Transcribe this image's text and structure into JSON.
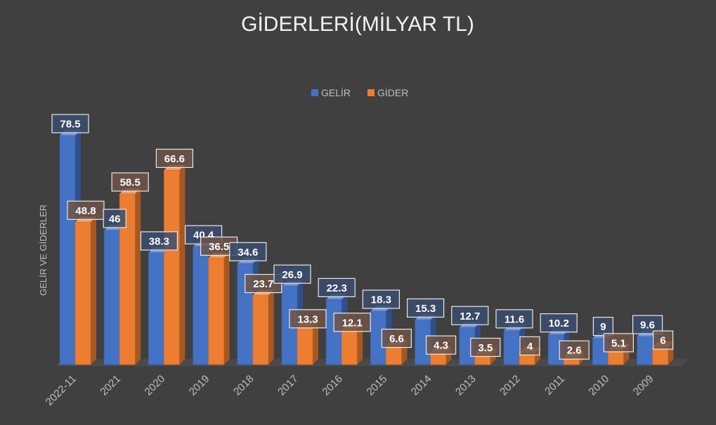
{
  "chart_data": {
    "type": "bar",
    "title": "GİDERLERİ(MİLYAR TL)",
    "xlabel": "",
    "ylabel": "GELİR VE GİDERLER",
    "categories": [
      "2022-11",
      "2021",
      "2020",
      "2019",
      "2018",
      "2017",
      "2016",
      "2015",
      "2014",
      "2013",
      "2012",
      "2011",
      "2010",
      "2009"
    ],
    "series": [
      {
        "name": "GELİR",
        "color": "#4472C4",
        "values": [
          78.5,
          46,
          38.3,
          40.4,
          34.6,
          26.9,
          22.3,
          18.3,
          15.3,
          12.7,
          11.6,
          10.2,
          9,
          9.6
        ]
      },
      {
        "name": "GİDER",
        "color": "#ED7D31",
        "values": [
          48.8,
          58.5,
          66.6,
          36.5,
          23.7,
          13.3,
          12.1,
          6.6,
          4.3,
          3.5,
          4,
          2.6,
          5.1,
          6
        ]
      }
    ],
    "ylim": [
      0,
      80
    ],
    "grid": false,
    "legend": "top-center",
    "data_labels": true,
    "style": "3d-clustered-column"
  }
}
